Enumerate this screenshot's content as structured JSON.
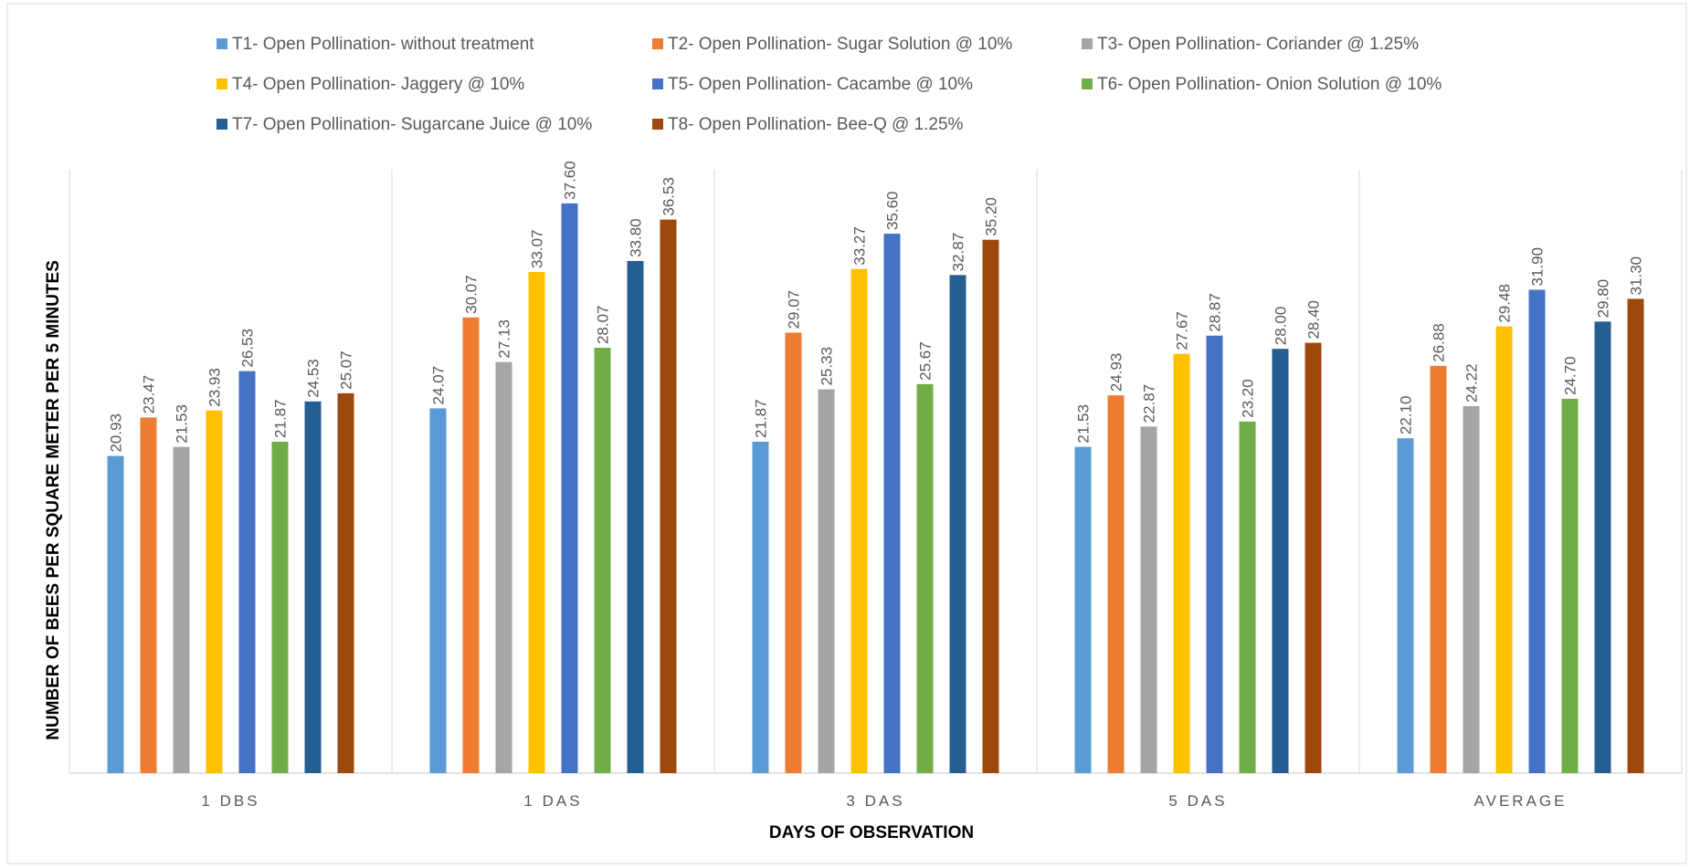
{
  "chart_data": {
    "type": "bar",
    "title": "",
    "xlabel": "DAYS OF OBSERVATION",
    "ylabel": "NUMBER OF BEES PER SQUARE METER PER 5 MINUTES",
    "categories": [
      "1 DBS",
      "1 DAS",
      "3 DAS",
      "5 DAS",
      "AVERAGE"
    ],
    "ylim": [
      0,
      40
    ],
    "grid": "vertical category separators only",
    "legend_position": "top",
    "series": [
      {
        "name": "T1- Open Pollination- without treatment",
        "color": "#5B9BD5",
        "values": [
          20.93,
          24.07,
          21.87,
          21.53,
          22.1
        ],
        "labels": [
          "20.93",
          "24.07",
          "21.87",
          "21.53",
          "22.10"
        ]
      },
      {
        "name": "T2- Open Pollination- Sugar Solution @ 10%",
        "color": "#ED7D31",
        "values": [
          23.47,
          30.07,
          29.07,
          24.93,
          26.88
        ],
        "labels": [
          "23.47",
          "30.07",
          "29.07",
          "24.93",
          "26.88"
        ]
      },
      {
        "name": "T3- Open Pollination- Coriander @ 1.25%",
        "color": "#A5A5A5",
        "values": [
          21.53,
          27.13,
          25.33,
          22.87,
          24.22
        ],
        "labels": [
          "21.53",
          "27.13",
          "25.33",
          "22.87",
          "24.22"
        ]
      },
      {
        "name": "T4- Open Pollination- Jaggery @ 10%",
        "color": "#FFC000",
        "values": [
          23.93,
          33.07,
          33.27,
          27.67,
          29.48
        ],
        "labels": [
          "23.93",
          "33.07",
          "33.27",
          "27.67",
          "29.48"
        ]
      },
      {
        "name": "T5- Open Pollination- Cacambe @ 10%",
        "color": "#4472C4",
        "values": [
          26.53,
          37.6,
          35.6,
          28.87,
          31.9
        ],
        "labels": [
          "26.53",
          "37.60",
          "35.60",
          "28.87",
          "31.90"
        ]
      },
      {
        "name": "T6- Open Pollination- Onion Solution @ 10%",
        "color": "#70AD47",
        "values": [
          21.87,
          28.07,
          25.67,
          23.2,
          24.7
        ],
        "labels": [
          "21.87",
          "28.07",
          "25.67",
          "23.20",
          "24.70"
        ]
      },
      {
        "name": "T7- Open Pollination- Sugarcane Juice @ 10%",
        "color": "#255E91",
        "values": [
          24.53,
          33.8,
          32.87,
          28.0,
          29.8
        ],
        "labels": [
          "24.53",
          "33.80",
          "32.87",
          "28.00",
          "29.80"
        ]
      },
      {
        "name": "T8- Open Pollination- Bee-Q @ 1.25%",
        "color": "#9E480E",
        "values": [
          25.07,
          36.53,
          35.2,
          28.4,
          31.3
        ],
        "labels": [
          "25.07",
          "36.53",
          "35.20",
          "28.40",
          "31.30"
        ]
      }
    ]
  }
}
